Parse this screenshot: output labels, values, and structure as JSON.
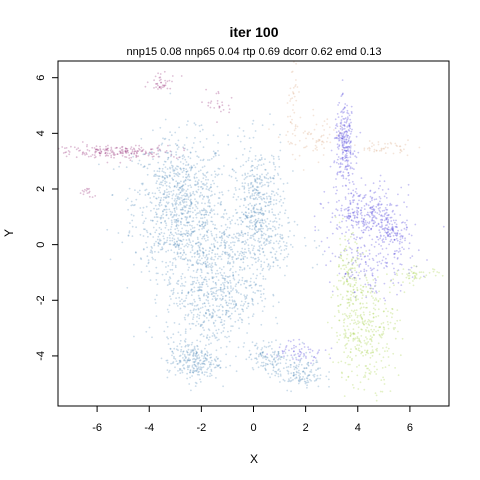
{
  "chart_data": {
    "type": "scatter",
    "title": "iter 100",
    "subtitle": "nnp15 0.08 nnp65 0.04 rtp 0.69 dcorr 0.62 emd 0.13",
    "xlabel": "X",
    "ylabel": "Y",
    "xlim": [
      -7.5,
      7.5
    ],
    "ylim": [
      -5.8,
      6.6
    ],
    "xticks": [
      -6,
      -4,
      -2,
      0,
      2,
      4,
      6
    ],
    "yticks": [
      -4,
      -2,
      0,
      2,
      4,
      6
    ],
    "grid": false,
    "legend": "none",
    "series": [
      {
        "color": "#4682b4",
        "clusters": [
          {
            "cx": -2.8,
            "cy": 1.5,
            "sx": 0.9,
            "sy": 1.2,
            "n": 900,
            "w": 0
          },
          {
            "cx": 0.2,
            "cy": 1.2,
            "sx": 0.5,
            "sy": 1.2,
            "n": 500,
            "w": 0
          },
          {
            "cx": -1.6,
            "cy": -1.8,
            "sx": 0.9,
            "sy": 1.0,
            "n": 600,
            "w": 0
          },
          {
            "cx": -2.3,
            "cy": -4.2,
            "sx": 0.5,
            "sy": 0.35,
            "n": 250,
            "w": 0
          },
          {
            "cx": 1.7,
            "cy": -4.6,
            "sx": 0.5,
            "sy": 0.3,
            "n": 150,
            "w": 0
          },
          {
            "cx": 0.6,
            "cy": -4.0,
            "sx": 0.4,
            "sy": 0.25,
            "n": 100,
            "w": 0
          },
          {
            "cx": -1.2,
            "cy": 0.0,
            "sx": 1.5,
            "sy": 0.6,
            "n": 300,
            "w": 0
          }
        ]
      },
      {
        "color": "#3a2ad8",
        "clusters": [
          {
            "cx": 3.5,
            "cy": 3.6,
            "sx": 0.2,
            "sy": 0.7,
            "n": 260,
            "w": 0
          },
          {
            "cx": 4.3,
            "cy": 1.1,
            "sx": 0.7,
            "sy": 0.5,
            "n": 320,
            "w": 0
          },
          {
            "cx": 5.3,
            "cy": 0.4,
            "sx": 0.3,
            "sy": 0.3,
            "n": 100,
            "w": 0
          },
          {
            "cx": 4.6,
            "cy": -0.8,
            "sx": 0.8,
            "sy": 0.5,
            "n": 160,
            "w": 0
          },
          {
            "cx": 1.8,
            "cy": -3.8,
            "sx": 0.5,
            "sy": 0.2,
            "n": 60,
            "w": 0
          }
        ]
      },
      {
        "color": "#9acd32",
        "clusters": [
          {
            "cx": 4.3,
            "cy": -3.1,
            "sx": 0.6,
            "sy": 1.0,
            "n": 360,
            "w": 0
          },
          {
            "cx": 3.6,
            "cy": -1.3,
            "sx": 0.3,
            "sy": 0.8,
            "n": 140,
            "w": 0
          },
          {
            "cx": 6.2,
            "cy": -1.1,
            "sx": 0.5,
            "sy": 0.15,
            "n": 50,
            "w": 0
          }
        ]
      },
      {
        "color": "#8b1a6b",
        "clusters": [
          {
            "cx": -5.2,
            "cy": 3.35,
            "sx": 1.2,
            "sy": 0.12,
            "n": 200,
            "w": 0
          },
          {
            "cx": -3.5,
            "cy": 5.8,
            "sx": 0.3,
            "sy": 0.15,
            "n": 40,
            "w": 0
          },
          {
            "cx": -1.3,
            "cy": 5.1,
            "sx": 0.25,
            "sy": 0.3,
            "n": 25,
            "w": 0
          },
          {
            "cx": -6.4,
            "cy": 1.85,
            "sx": 0.15,
            "sy": 0.1,
            "n": 15,
            "w": 0
          }
        ]
      },
      {
        "color": "#d9a07a",
        "clusters": [
          {
            "cx": 2.4,
            "cy": 3.8,
            "sx": 0.6,
            "sy": 0.4,
            "n": 70,
            "w": 0
          },
          {
            "cx": 5.0,
            "cy": 3.5,
            "sx": 0.5,
            "sy": 0.12,
            "n": 45,
            "w": 0
          },
          {
            "cx": 1.5,
            "cy": 5.2,
            "sx": 0.12,
            "sy": 0.8,
            "n": 35,
            "w": 0
          }
        ]
      }
    ]
  }
}
